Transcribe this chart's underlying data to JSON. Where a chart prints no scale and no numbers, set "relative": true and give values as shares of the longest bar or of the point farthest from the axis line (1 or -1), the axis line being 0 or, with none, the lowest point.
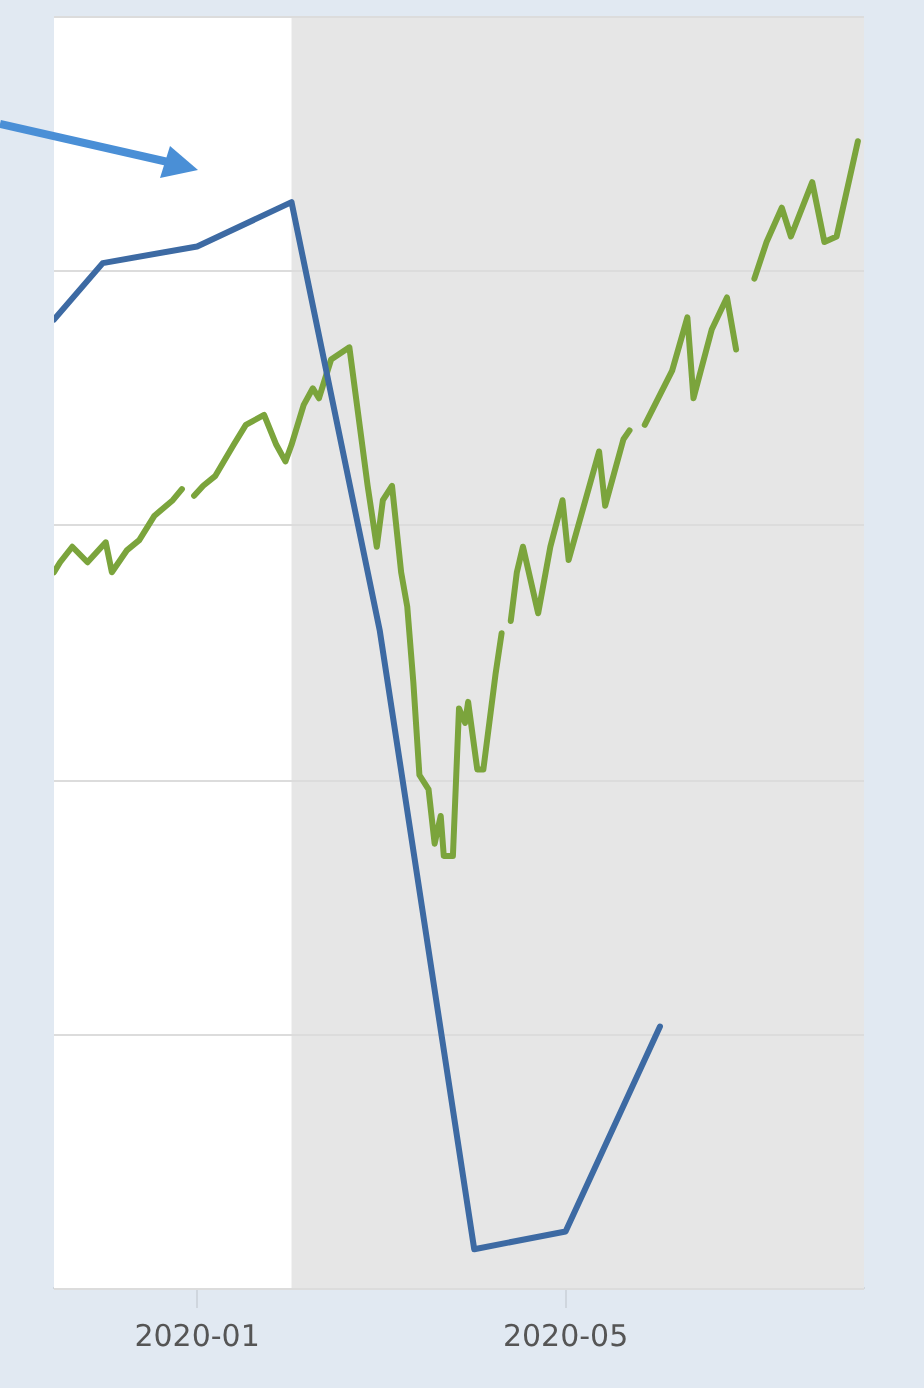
{
  "chart_data": {
    "type": "line",
    "relative": true,
    "xlim": [
      "2019-11-15",
      "2020-08-07"
    ],
    "xticks": [
      "2020-01",
      "2020-05"
    ],
    "grid": "y",
    "legend": false,
    "bands": [
      {
        "axis": "x",
        "from": "2020-02-01",
        "to": "2020-08-07",
        "color": "#e6e6e6"
      }
    ],
    "series": [
      {
        "color": "#3d6aa3",
        "x": [
          "2019-11-15",
          "2019-12-01",
          "2020-01-01",
          "2020-02-01",
          "2020-03-01",
          "2020-04-01",
          "2020-05-01",
          "2020-06-01"
        ],
        "values": [
          0.839,
          0.89,
          0.905,
          0.945,
          0.558,
          0,
          0.016,
          0.201
        ]
      },
      {
        "color": "#7ba43c",
        "x": [
          "2019-11-15",
          "2019-11-17",
          "2019-11-21",
          "2019-11-26",
          "2019-12-02",
          "2019-12-04",
          "2019-12-09",
          "2019-12-13",
          "2019-12-18",
          "2019-12-24",
          "2019-12-27",
          "2019-12-29",
          "2019-12-31",
          "2020-01-03",
          "2020-01-07",
          "2020-01-13",
          "2020-01-17",
          "2020-01-23",
          "2020-01-27",
          "2020-01-30",
          "2020-02-01",
          "2020-02-05",
          "2020-02-08",
          "2020-02-10",
          "2020-02-14",
          "2020-02-20",
          "2020-02-26",
          "2020-02-29",
          "2020-03-02",
          "2020-03-05",
          "2020-03-08",
          "2020-03-10",
          "2020-03-12",
          "2020-03-14",
          "2020-03-17",
          "2020-03-19",
          "2020-03-21",
          "2020-03-22",
          "2020-03-25",
          "2020-03-27",
          "2020-03-29",
          "2020-03-30",
          "2020-04-02",
          "2020-04-04",
          "2020-04-08",
          "2020-04-10",
          "2020-04-11",
          "2020-04-13",
          "2020-04-15",
          "2020-04-17",
          "2020-04-22",
          "2020-04-26",
          "2020-04-30",
          "2020-05-02",
          "2020-05-12",
          "2020-05-14",
          "2020-05-20",
          "2020-05-22",
          "2020-05-24",
          "2020-05-27",
          "2020-06-05",
          "2020-06-10",
          "2020-06-12",
          "2020-06-18",
          "2020-06-23",
          "2020-06-26",
          "2020-06-29",
          "2020-07-02",
          "2020-07-06",
          "2020-07-11",
          "2020-07-14",
          "2020-07-21",
          "2020-07-25",
          "2020-07-29",
          "2020-08-05"
        ],
        "values": [
          0.611,
          0.62,
          0.634,
          0.62,
          0.638,
          0.611,
          0.631,
          0.64,
          0.662,
          0.676,
          0.686,
          null,
          0.68,
          0.689,
          0.698,
          0.726,
          0.744,
          0.753,
          0.726,
          0.711,
          0.726,
          0.762,
          0.777,
          0.768,
          0.803,
          0.814,
          0.689,
          0.634,
          0.676,
          0.689,
          0.611,
          0.58,
          0.512,
          0.428,
          0.415,
          0.366,
          0.391,
          0.355,
          0.355,
          0.488,
          0.475,
          0.494,
          0.433,
          0.433,
          0.519,
          0.556,
          null,
          0.567,
          0.611,
          0.634,
          0.574,
          0.634,
          0.676,
          0.622,
          0.72,
          0.671,
          0.731,
          0.739,
          null,
          0.744,
          0.793,
          0.841,
          0.768,
          0.83,
          0.859,
          0.812,
          null,
          0.876,
          0.909,
          0.94,
          0.914,
          0.963,
          0.909,
          0.914,
          1.0
        ]
      }
    ]
  }
}
